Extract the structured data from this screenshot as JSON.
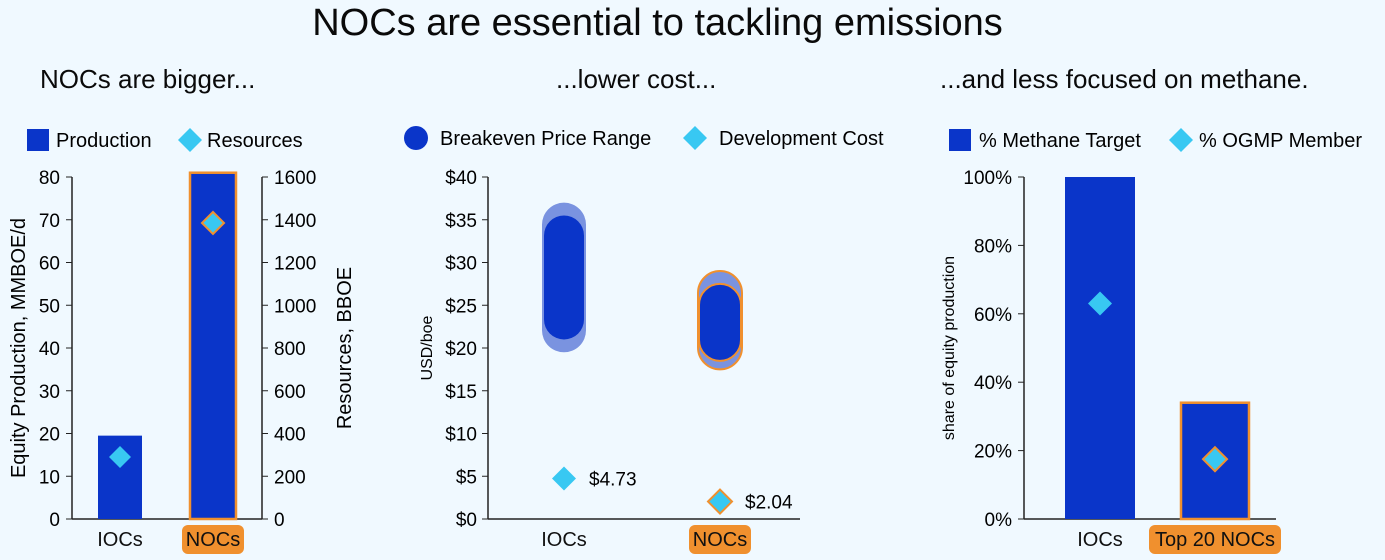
{
  "page": {
    "title": "NOCs are essential to tackling emissions",
    "accent_blue": "#0a35c9",
    "light_blue": "#7a93e0",
    "diamond_color": "#38c8f2",
    "highlight_orange": "#f0902e"
  },
  "chart_data": [
    {
      "type": "bar",
      "subtitle": "NOCs are bigger...",
      "categories": [
        "IOCs",
        "NOCs"
      ],
      "highlight_category": "NOCs",
      "legend": [
        "Production",
        "Resources"
      ],
      "series": [
        {
          "name": "Production",
          "axis": "left",
          "marker": "bar",
          "values": [
            19.5,
            81
          ]
        },
        {
          "name": "Resources",
          "axis": "right",
          "marker": "diamond",
          "values": [
            290,
            1385
          ]
        }
      ],
      "ylabel": "Equity Production, MMBOE/d",
      "ylim": [
        0,
        80
      ],
      "yticks": [
        "0",
        "10",
        "20",
        "30",
        "40",
        "50",
        "60",
        "70",
        "80"
      ],
      "y2label": "Resources, BBOE",
      "y2lim": [
        0,
        1600
      ],
      "y2ticks": [
        "0",
        "200",
        "400",
        "600",
        "800",
        "1000",
        "1200",
        "1400",
        "1600"
      ]
    },
    {
      "type": "range",
      "subtitle": "...lower cost...",
      "categories": [
        "IOCs",
        "NOCs"
      ],
      "highlight_category": "NOCs",
      "legend": [
        "Breakeven Price Range",
        "Development Cost"
      ],
      "series": [
        {
          "name": "Breakeven Price Range (outer)",
          "ranges": [
            [
              19.5,
              37
            ],
            [
              17.5,
              29
            ]
          ]
        },
        {
          "name": "Breakeven Price Range (inner)",
          "ranges": [
            [
              21,
              35.5
            ],
            [
              18.5,
              27.5
            ]
          ]
        },
        {
          "name": "Development Cost",
          "values": [
            4.73,
            2.04
          ],
          "labels": [
            "$4.73",
            "$2.04"
          ]
        }
      ],
      "ylabel": "USD/boe",
      "ylim": [
        0,
        40
      ],
      "yticks": [
        "$0",
        "$5",
        "$10",
        "$15",
        "$20",
        "$25",
        "$30",
        "$35",
        "$40"
      ]
    },
    {
      "type": "bar",
      "subtitle": "...and less focused on methane.",
      "categories": [
        "IOCs",
        "Top 20 NOCs"
      ],
      "highlight_category": "Top 20 NOCs",
      "legend": [
        "% Methane Target",
        "% OGMP Member"
      ],
      "series": [
        {
          "name": "% Methane Target",
          "marker": "bar",
          "values": [
            100,
            34
          ]
        },
        {
          "name": "% OGMP Member",
          "marker": "diamond",
          "values": [
            63,
            17.5
          ]
        }
      ],
      "ylabel": "share of equity production",
      "ylim": [
        0,
        100
      ],
      "yticks": [
        "0%",
        "20%",
        "40%",
        "60%",
        "80%",
        "100%"
      ]
    }
  ]
}
